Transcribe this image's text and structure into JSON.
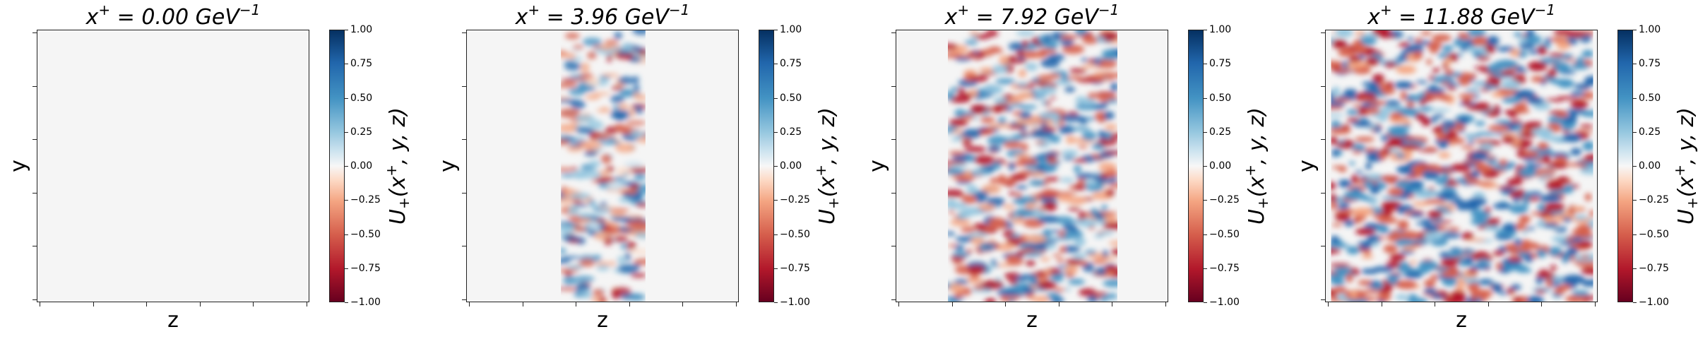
{
  "chart_data": {
    "type": "heatmap",
    "panels": [
      {
        "title_base": "x",
        "title_sup": "+",
        "title_value": " = 0.00 GeV",
        "title_unit_sup": "−1",
        "band_fraction": 0.0,
        "intensity": 0.0
      },
      {
        "title_base": "x",
        "title_sup": "+",
        "title_value": " = 3.96 GeV",
        "title_unit_sup": "−1",
        "band_fraction": 0.31,
        "intensity": 0.55
      },
      {
        "title_base": "x",
        "title_sup": "+",
        "title_value": " = 7.92 GeV",
        "title_unit_sup": "−1",
        "band_fraction": 0.62,
        "intensity": 0.8
      },
      {
        "title_base": "x",
        "title_sup": "+",
        "title_value": " = 11.88 GeV",
        "title_unit_sup": "−1",
        "band_fraction": 0.96,
        "intensity": 0.95
      }
    ],
    "xlabel": "z",
    "ylabel": "y",
    "colorbar_label_base": "U",
    "colorbar_label_sub": "+",
    "colorbar_label_rest": "(x",
    "colorbar_label_sup": "+",
    "colorbar_label_end": ", y, z)",
    "colorbar_ticks": [
      "1.00",
      "0.75",
      "0.50",
      "0.25",
      "0.00",
      "−0.25",
      "−0.50",
      "−0.75",
      "−1.00"
    ],
    "colorbar_range": [
      -1.0,
      1.0
    ],
    "colormap": "RdBu",
    "colors": {
      "positive": "#2166ac",
      "negative": "#d6604d",
      "zero": "#f5f5f5"
    }
  }
}
